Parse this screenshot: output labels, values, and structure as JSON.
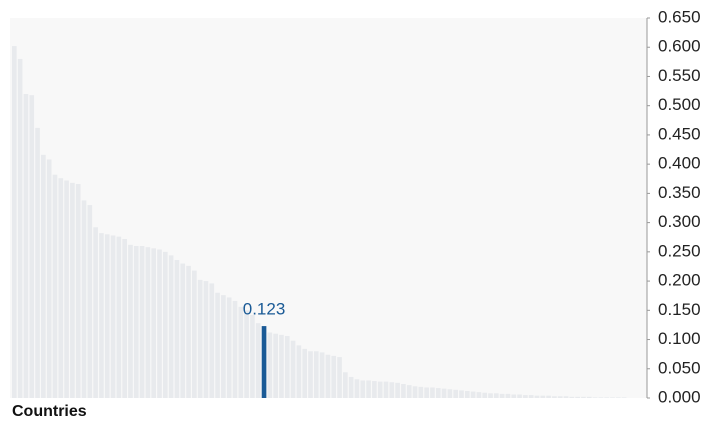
{
  "chart_data": {
    "type": "bar",
    "x_label": "Countries",
    "values": [
      0.602,
      0.58,
      0.52,
      0.518,
      0.462,
      0.416,
      0.408,
      0.382,
      0.376,
      0.372,
      0.368,
      0.366,
      0.338,
      0.33,
      0.292,
      0.282,
      0.28,
      0.278,
      0.276,
      0.272,
      0.262,
      0.26,
      0.26,
      0.258,
      0.256,
      0.254,
      0.25,
      0.244,
      0.236,
      0.23,
      0.226,
      0.218,
      0.202,
      0.2,
      0.196,
      0.18,
      0.176,
      0.172,
      0.166,
      0.156,
      0.15,
      0.142,
      0.128,
      0.123,
      0.112,
      0.11,
      0.108,
      0.106,
      0.098,
      0.09,
      0.084,
      0.08,
      0.08,
      0.078,
      0.074,
      0.072,
      0.07,
      0.044,
      0.036,
      0.032,
      0.03,
      0.03,
      0.029,
      0.028,
      0.028,
      0.027,
      0.026,
      0.024,
      0.022,
      0.02,
      0.019,
      0.018,
      0.018,
      0.017,
      0.016,
      0.015,
      0.014,
      0.013,
      0.012,
      0.011,
      0.01,
      0.009,
      0.008,
      0.008,
      0.007,
      0.007,
      0.006,
      0.006,
      0.005,
      0.005,
      0.004,
      0.004,
      0.004,
      0.003,
      0.003,
      0.003,
      0.002,
      0.002,
      0.002,
      0.002,
      0.001,
      0.001,
      0.001,
      0.001,
      0.001,
      0.001,
      0.0,
      0.0,
      0.0
    ],
    "value_labels": [
      null,
      null,
      null,
      null,
      null,
      null,
      null,
      null,
      null,
      null,
      null,
      null,
      null,
      null,
      null,
      null,
      null,
      null,
      null,
      null,
      null,
      null,
      null,
      null,
      null,
      null,
      null,
      null,
      null,
      null,
      null,
      null,
      null,
      null,
      null,
      null,
      null,
      null,
      null,
      null,
      null,
      null,
      null,
      "0.123",
      null,
      null,
      null,
      null,
      null,
      null,
      null,
      null,
      null,
      null,
      null,
      null,
      null,
      null,
      null,
      null,
      null,
      null,
      null,
      null,
      null,
      null,
      null,
      null,
      null,
      null,
      null,
      null,
      null,
      null,
      null,
      null,
      null,
      null,
      null,
      null,
      null,
      null,
      null,
      null,
      null,
      null,
      null,
      null,
      null,
      null,
      null,
      null,
      null,
      null,
      null,
      null,
      null,
      null,
      null,
      null,
      null,
      null,
      null,
      null,
      null,
      null,
      null,
      null,
      null
    ],
    "color": "#e8eaed",
    "highlight_color": "#1a5a96",
    "ylim": [
      0,
      0.65
    ],
    "yticks": [
      {
        "value": 0,
        "label": "0.000"
      },
      {
        "value": 0.05,
        "label": "0.050"
      },
      {
        "value": 0.1,
        "label": "0.100"
      },
      {
        "value": 0.15,
        "label": "0.150"
      },
      {
        "value": 0.2,
        "label": "0.200"
      },
      {
        "value": 0.25,
        "label": "0.250"
      },
      {
        "value": 0.3,
        "label": "0.300"
      },
      {
        "value": 0.35,
        "label": "0.350"
      },
      {
        "value": 0.4,
        "label": "0.400"
      },
      {
        "value": 0.45,
        "label": "0.450"
      },
      {
        "value": 0.5,
        "label": "0.500"
      },
      {
        "value": 0.55,
        "label": "0.550"
      },
      {
        "value": 0.6,
        "label": "0.600"
      },
      {
        "value": 0.65,
        "label": "0.650"
      }
    ],
    "y_axis_side": "right"
  }
}
